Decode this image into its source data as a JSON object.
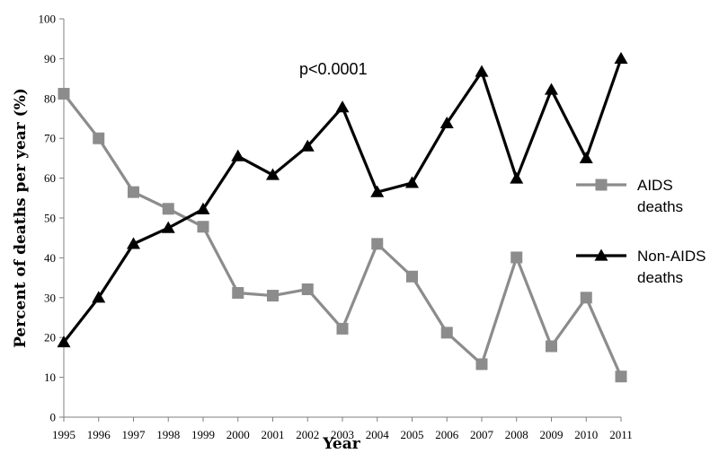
{
  "chart_data": {
    "type": "line",
    "title": "",
    "xlabel": "Year",
    "ylabel": "Percent of deaths per year (%)",
    "annotation": "p<0.0001",
    "x": [
      "1995",
      "1996",
      "1997",
      "1998",
      "1999",
      "2000",
      "2001",
      "2002",
      "2003",
      "2004",
      "2005",
      "2006",
      "2007",
      "2008",
      "2009",
      "2010",
      "2011"
    ],
    "ylim": [
      0,
      100
    ],
    "yticks": [
      0,
      10,
      20,
      30,
      40,
      50,
      60,
      70,
      80,
      90,
      100
    ],
    "grid": false,
    "legend_position": "right",
    "series": [
      {
        "name_lines": [
          "AIDS",
          "deaths"
        ],
        "marker": "square",
        "color": "#8c8c8c",
        "values": [
          81.2,
          70,
          56.5,
          52.3,
          47.8,
          31.2,
          30.5,
          32.1,
          22.2,
          43.5,
          35.3,
          21.2,
          13.3,
          40.1,
          17.8,
          30,
          10.2
        ]
      },
      {
        "name_lines": [
          "Non-AIDS",
          "deaths"
        ],
        "marker": "triangle",
        "color": "#000000",
        "values": [
          18.8,
          30,
          43.5,
          47.5,
          52.2,
          65.5,
          60.8,
          68,
          77.8,
          56.5,
          58.8,
          73.8,
          86.7,
          59.9,
          82.2,
          65,
          90
        ]
      }
    ]
  }
}
